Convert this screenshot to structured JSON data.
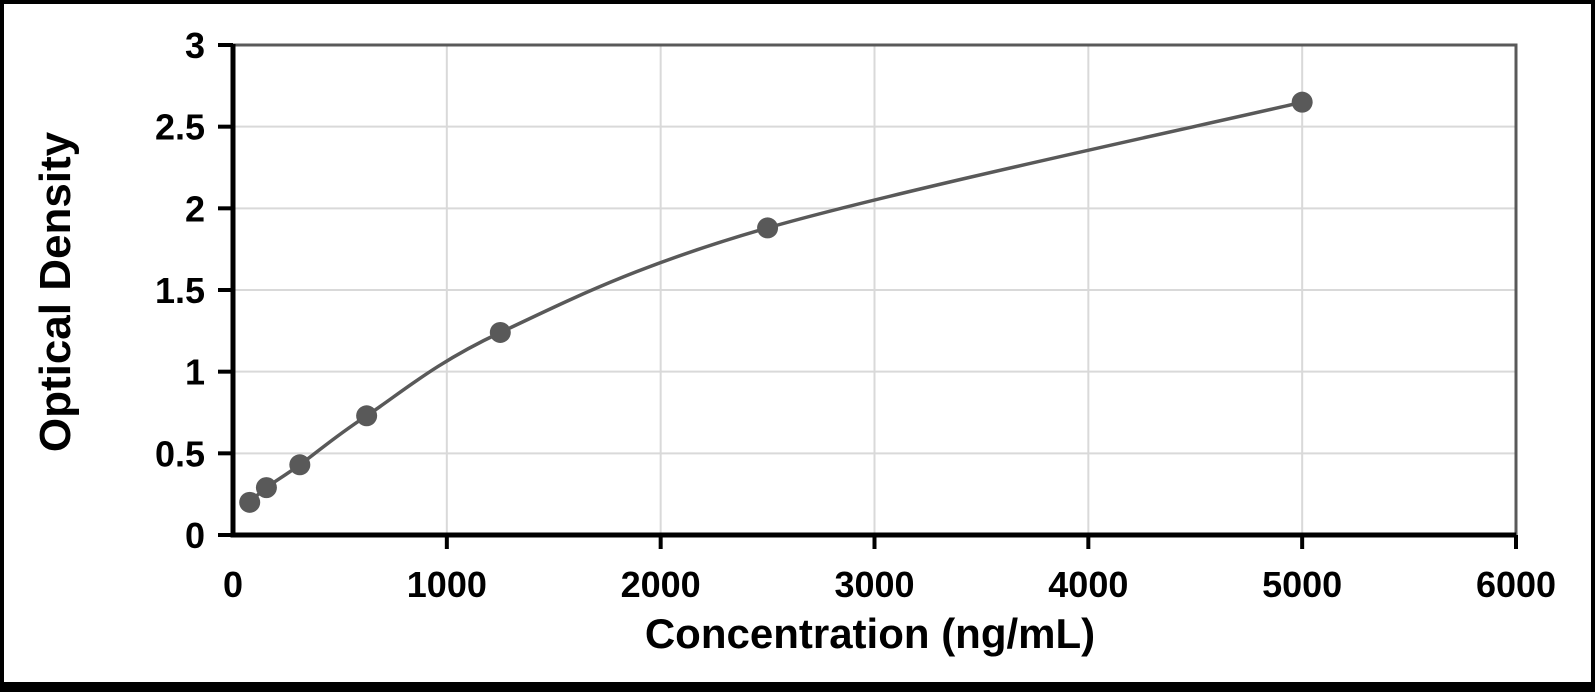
{
  "chart_data": {
    "type": "scatter",
    "title": "",
    "xlabel": "Concentration (ng/mL)",
    "ylabel": "Optical Density",
    "x": [
      78.125,
      156.25,
      312.5,
      625,
      1250,
      2500,
      5000
    ],
    "y": [
      0.2,
      0.29,
      0.43,
      0.73,
      1.24,
      1.88,
      2.65
    ],
    "xlim": [
      0,
      6000
    ],
    "ylim": [
      0,
      3
    ],
    "x_ticks": [
      0,
      1000,
      2000,
      3000,
      4000,
      5000,
      6000
    ],
    "x_tick_labels": [
      "0",
      "1000",
      "2000",
      "3000",
      "4000",
      "5000",
      "6000"
    ],
    "y_ticks": [
      0,
      0.5,
      1,
      1.5,
      2,
      2.5,
      3
    ],
    "y_tick_labels": [
      "0",
      "0.5",
      "1",
      "1.5",
      "2",
      "2.5",
      "3"
    ],
    "grid": true,
    "legend": "none",
    "trend_line": "smooth curve through all points",
    "colors": {
      "marker": "#595959",
      "line": "#595959",
      "gridline": "#d9d9d9",
      "axis": "#000000",
      "plot_border": "#595959",
      "frame_border": "#000000",
      "background": "#ffffff",
      "text": "#000000"
    }
  }
}
